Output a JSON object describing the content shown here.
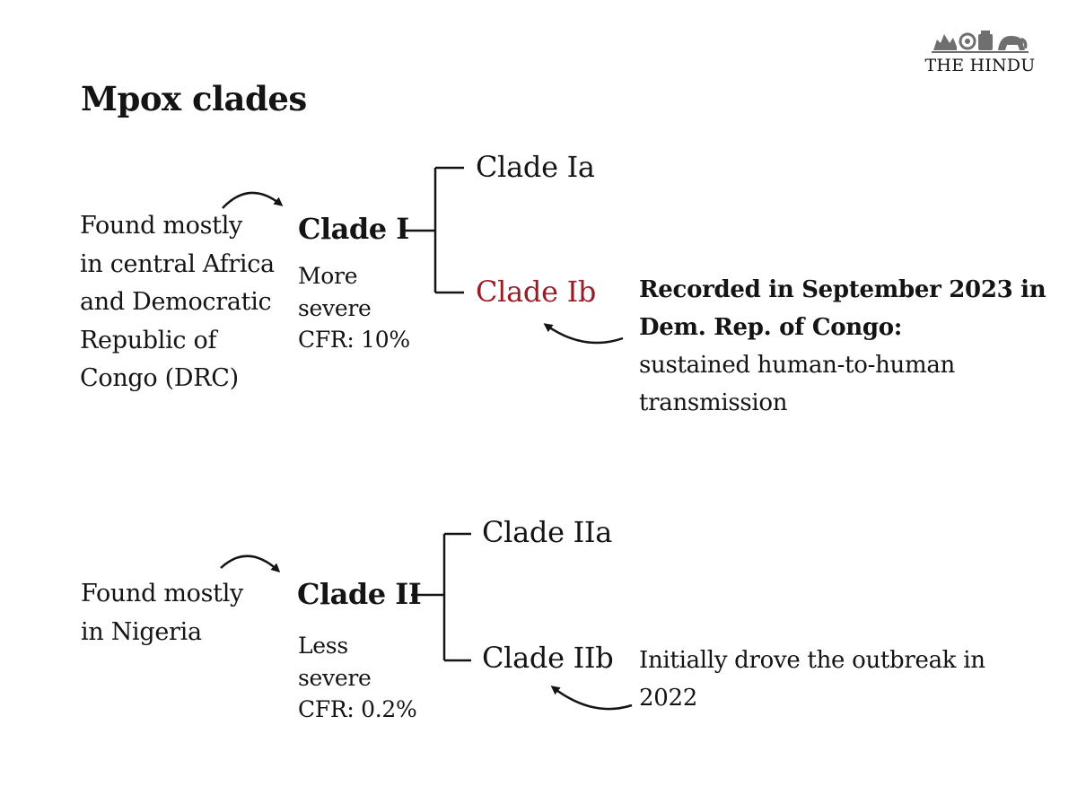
{
  "logo": {
    "text": "THE HINDU",
    "icon": "emblem-icon"
  },
  "title": "Mpox clades",
  "clade1": {
    "origin": [
      "Found mostly",
      "in central Africa",
      "and Democratic",
      "Republic of",
      "Congo (DRC)"
    ],
    "name": "Clade I",
    "severity": [
      "More",
      "severe",
      "CFR: 10%"
    ],
    "sub_a": "Clade Ia",
    "sub_b": "Clade Ib",
    "note_bold": [
      "Recorded in September 2023 in",
      "Dem. Rep. of Congo:"
    ],
    "note": [
      "sustained human-to-human",
      "transmission"
    ]
  },
  "clade2": {
    "origin": [
      "Found mostly",
      "in Nigeria"
    ],
    "name": "Clade II",
    "severity": [
      "Less",
      "severe",
      "CFR: 0.2%"
    ],
    "sub_a": "Clade IIa",
    "sub_b": "Clade IIb",
    "note": [
      "Initially drove the outbreak in",
      "2022"
    ]
  },
  "colors": {
    "text": "#141414",
    "accent": "#9a1c25",
    "background": "#ffffff"
  }
}
